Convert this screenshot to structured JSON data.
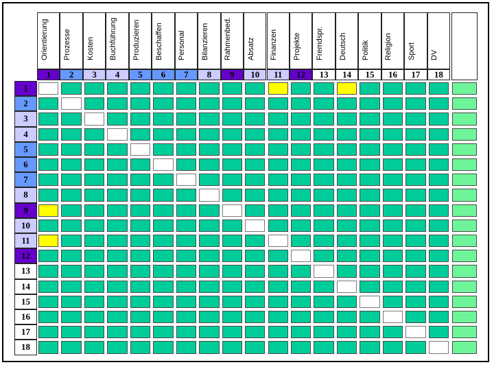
{
  "subjects": [
    "Orientierung",
    "Prozesse",
    "Kosten",
    "Buchführung",
    "Produzieren",
    "Beschaffen",
    "Personal",
    "Bilanzieren",
    "Rahmenbed.",
    "Absatz",
    "Finanzen",
    "Projekte",
    "Fremdspr.",
    "Deutsch",
    "Politik",
    "Religion",
    "Sport",
    "DV"
  ],
  "numbers": [
    "1",
    "2",
    "3",
    "4",
    "5",
    "6",
    "7",
    "8",
    "9",
    "10",
    "11",
    "12",
    "13",
    "14",
    "15",
    "16",
    "17",
    "18"
  ],
  "number_colors": [
    "#6600cc",
    "#6699ff",
    "#ccccff",
    "#ccccff",
    "#6699ff",
    "#6699ff",
    "#6699ff",
    "#ccccff",
    "#6600cc",
    "#ccccff",
    "#ccccff",
    "#6600cc",
    "#ffffff",
    "#ffffff",
    "#ffffff",
    "#ffffff",
    "#ffffff",
    "#ffffff"
  ],
  "colors": {
    "cell": "#00cc99",
    "diagonal": "#ffffff",
    "highlight": "#ffff00",
    "end_column": "#6ef59a"
  },
  "highlights": [
    [
      1,
      11
    ],
    [
      1,
      14
    ],
    [
      9,
      1
    ],
    [
      11,
      1
    ]
  ]
}
